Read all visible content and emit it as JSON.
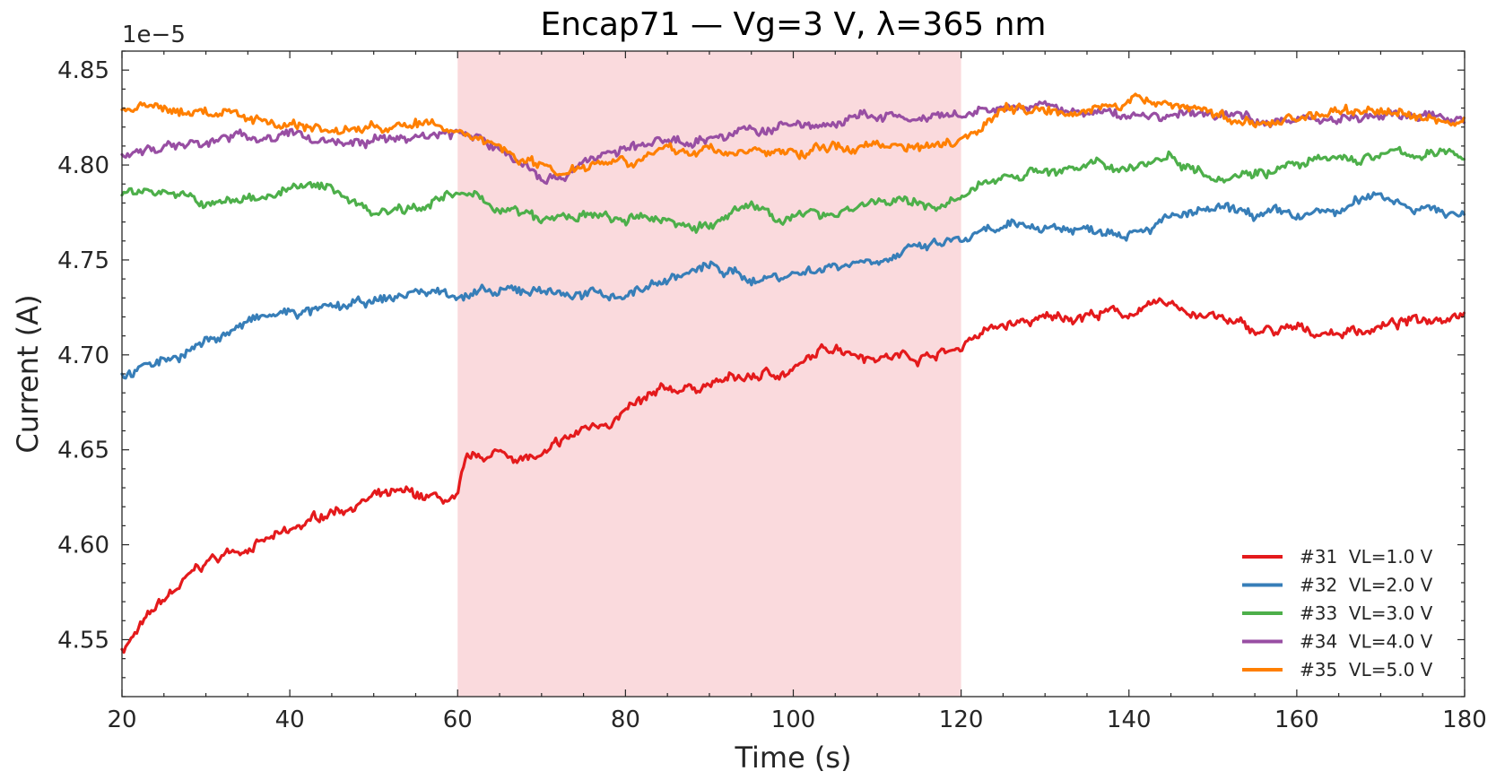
{
  "chart_data": {
    "type": "line",
    "title": "Encap71 — Vg=3 V, λ=365 nm",
    "xlabel": "Time (s)",
    "ylabel": "Current (A)",
    "y_offset_label": "1e−5",
    "y_scale_factor": 1e-05,
    "xlim": [
      20,
      180
    ],
    "ylim": [
      4.52,
      4.86
    ],
    "x_ticks": [
      20,
      40,
      60,
      80,
      100,
      120,
      140,
      160,
      180
    ],
    "x_tick_labels": [
      "20",
      "40",
      "60",
      "80",
      "100",
      "120",
      "140",
      "160",
      "180"
    ],
    "y_ticks": [
      4.55,
      4.6,
      4.65,
      4.7,
      4.75,
      4.8,
      4.85
    ],
    "y_tick_labels": [
      "4.55",
      "4.60",
      "4.65",
      "4.70",
      "4.75",
      "4.80",
      "4.85"
    ],
    "grid": false,
    "legend_position": "bottom-right",
    "shaded_region": {
      "x_start": 60,
      "x_end": 120,
      "color": "#fadadd"
    },
    "series": [
      {
        "name": "#31  VL=1.0 V",
        "color": "#e41a1c",
        "x": [
          20,
          25,
          30,
          35,
          40,
          45,
          50,
          55,
          60,
          61,
          65,
          70,
          75,
          80,
          85,
          90,
          95,
          100,
          105,
          110,
          115,
          120,
          121,
          125,
          130,
          135,
          140,
          145,
          150,
          155,
          160,
          165,
          170,
          175,
          180
        ],
        "y": [
          4.545,
          4.57,
          4.59,
          4.6,
          4.605,
          4.618,
          4.625,
          4.625,
          4.622,
          4.642,
          4.648,
          4.645,
          4.66,
          4.67,
          4.68,
          4.685,
          4.688,
          4.692,
          4.705,
          4.7,
          4.7,
          4.703,
          4.71,
          4.715,
          4.718,
          4.722,
          4.722,
          4.726,
          4.72,
          4.712,
          4.712,
          4.712,
          4.715,
          4.718,
          4.725
        ]
      },
      {
        "name": "#32  VL=2.0 V",
        "color": "#377eb8",
        "x": [
          20,
          25,
          30,
          35,
          40,
          45,
          50,
          55,
          60,
          65,
          70,
          75,
          80,
          85,
          90,
          95,
          100,
          105,
          110,
          115,
          120,
          125,
          130,
          135,
          140,
          145,
          150,
          155,
          160,
          165,
          170,
          175,
          180
        ],
        "y": [
          4.69,
          4.697,
          4.707,
          4.717,
          4.722,
          4.723,
          4.727,
          4.733,
          4.733,
          4.731,
          4.735,
          4.731,
          4.732,
          4.74,
          4.746,
          4.74,
          4.743,
          4.748,
          4.752,
          4.755,
          4.76,
          4.765,
          4.768,
          4.766,
          4.768,
          4.772,
          4.775,
          4.773,
          4.772,
          4.775,
          4.785,
          4.778,
          4.773
        ]
      },
      {
        "name": "#33  VL=3.0 V",
        "color": "#4daf4a",
        "x": [
          20,
          25,
          30,
          35,
          40,
          45,
          50,
          55,
          60,
          65,
          70,
          75,
          80,
          85,
          90,
          95,
          100,
          105,
          110,
          115,
          120,
          125,
          130,
          135,
          140,
          145,
          150,
          155,
          160,
          165,
          170,
          175,
          180
        ],
        "y": [
          4.786,
          4.788,
          4.778,
          4.782,
          4.788,
          4.787,
          4.776,
          4.78,
          4.784,
          4.778,
          4.77,
          4.773,
          4.77,
          4.771,
          4.768,
          4.778,
          4.772,
          4.776,
          4.782,
          4.778,
          4.781,
          4.795,
          4.798,
          4.798,
          4.8,
          4.805,
          4.796,
          4.798,
          4.8,
          4.802,
          4.805,
          4.806,
          4.804
        ]
      },
      {
        "name": "#34  VL=4.0 V",
        "color": "#984ea3",
        "x": [
          20,
          25,
          30,
          35,
          40,
          45,
          50,
          55,
          60,
          65,
          70,
          72,
          75,
          80,
          85,
          90,
          95,
          100,
          105,
          110,
          115,
          120,
          125,
          130,
          135,
          140,
          145,
          150,
          155,
          160,
          165,
          170,
          175,
          180
        ],
        "y": [
          4.805,
          4.81,
          4.812,
          4.815,
          4.815,
          4.813,
          4.812,
          4.815,
          4.818,
          4.808,
          4.795,
          4.793,
          4.803,
          4.808,
          4.812,
          4.815,
          4.818,
          4.82,
          4.822,
          4.826,
          4.823,
          4.824,
          4.83,
          4.83,
          4.827,
          4.826,
          4.826,
          4.826,
          4.825,
          4.824,
          4.826,
          4.825,
          4.826,
          4.824
        ]
      },
      {
        "name": "#35  VL=5.0 V",
        "color": "#ff7f00",
        "x": [
          20,
          25,
          30,
          35,
          40,
          45,
          50,
          55,
          60,
          65,
          70,
          72,
          75,
          80,
          85,
          90,
          95,
          100,
          105,
          110,
          115,
          120,
          125,
          130,
          135,
          140,
          145,
          150,
          155,
          160,
          165,
          170,
          175,
          180
        ],
        "y": [
          4.83,
          4.828,
          4.828,
          4.826,
          4.822,
          4.818,
          4.82,
          4.821,
          4.818,
          4.81,
          4.8,
          4.797,
          4.802,
          4.805,
          4.806,
          4.808,
          4.807,
          4.806,
          4.809,
          4.811,
          4.811,
          4.815,
          4.83,
          4.83,
          4.831,
          4.832,
          4.833,
          4.828,
          4.82,
          4.826,
          4.828,
          4.83,
          4.824,
          4.823
        ]
      }
    ]
  }
}
